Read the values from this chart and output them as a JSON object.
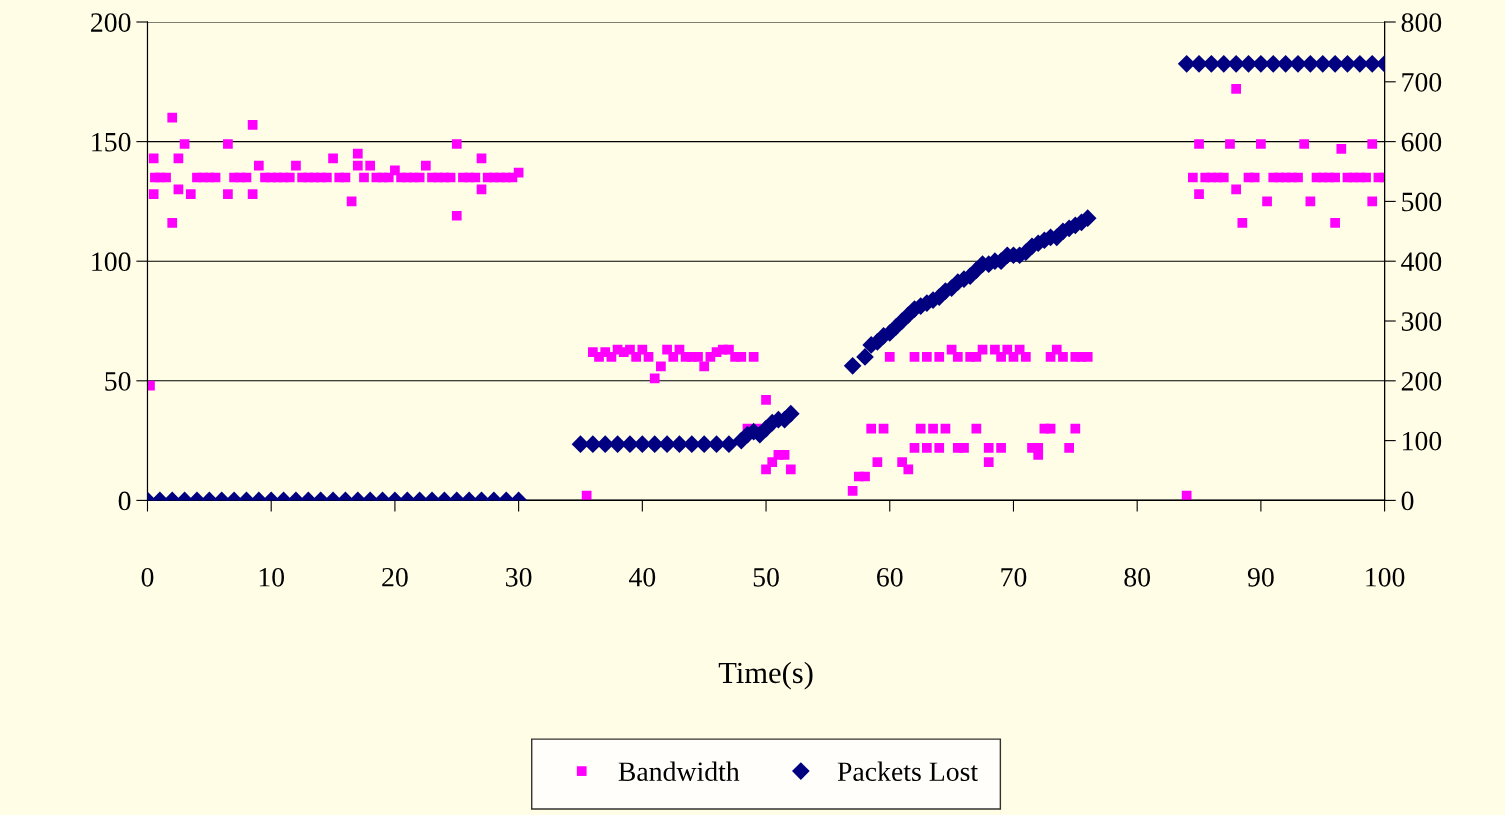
{
  "chart_data": {
    "type": "scatter",
    "xlabel": "Time(s)",
    "xlim": [
      0,
      100
    ],
    "xticks": [
      0,
      10,
      20,
      30,
      40,
      50,
      60,
      70,
      80,
      90,
      100
    ],
    "ylim": [
      0,
      200
    ],
    "yticks": [
      0,
      50,
      100,
      150,
      200
    ],
    "y2lim": [
      0,
      800
    ],
    "y2ticks": [
      0,
      100,
      200,
      300,
      400,
      500,
      600,
      700,
      800
    ],
    "grid": "y",
    "legend": "bottom",
    "series": [
      {
        "name": "Bandwidth",
        "color": "#ff00ff",
        "marker": "square",
        "x": [
          0.2,
          0.5,
          0.5,
          0.6,
          1,
          1.5,
          2,
          2,
          2.5,
          2.5,
          3,
          3.5,
          4,
          4.5,
          5,
          5.5,
          6.5,
          6.5,
          7,
          7.5,
          8,
          8.5,
          8.5,
          9,
          9.5,
          10,
          10.5,
          11,
          11.5,
          12,
          12.5,
          13,
          13.5,
          14,
          14.5,
          15,
          15.5,
          16,
          16.5,
          17,
          17,
          17.5,
          18,
          18.5,
          19,
          19.5,
          20,
          20.5,
          21,
          21.5,
          22,
          22.5,
          23,
          23.5,
          24,
          24.5,
          25,
          25,
          25.5,
          26,
          26.5,
          27,
          27,
          27.5,
          28,
          28.5,
          29,
          29.5,
          30,
          35.5,
          36,
          36.5,
          37,
          37.5,
          38,
          38.5,
          39,
          39.5,
          40,
          40.5,
          41,
          41.5,
          42,
          42.5,
          43,
          43.5,
          44,
          44.5,
          45,
          45.5,
          46,
          46.5,
          47,
          47.5,
          48,
          48.5,
          49,
          49.5,
          50,
          50,
          50.5,
          51,
          51.5,
          52,
          57,
          57.5,
          58,
          58.5,
          59,
          59.5,
          60,
          61,
          61.5,
          62,
          62,
          62.5,
          63,
          63,
          63.5,
          64,
          64,
          64.5,
          65,
          65.5,
          65.5,
          66,
          66.5,
          67,
          67,
          67.5,
          68,
          68,
          68.5,
          69,
          69,
          69.5,
          70,
          70.5,
          71,
          71.5,
          72,
          72,
          72.5,
          73,
          73,
          73.5,
          74,
          74.5,
          75,
          75,
          75.5,
          76,
          84,
          84.5,
          85,
          85,
          85.5,
          86,
          86.5,
          87,
          87.5,
          88,
          88,
          88.5,
          89,
          89.5,
          90,
          90.5,
          91,
          91.5,
          92,
          92.5,
          93,
          93.5,
          94,
          94.5,
          95,
          95.5,
          96,
          96,
          96.5,
          97,
          97.5,
          98,
          98.5,
          99,
          99,
          99.5,
          100
        ],
        "values": [
          48,
          143,
          128,
          135,
          135,
          135,
          160,
          116,
          143,
          130,
          149,
          128,
          135,
          135,
          135,
          135,
          149,
          128,
          135,
          135,
          135,
          157,
          128,
          140,
          135,
          135,
          135,
          135,
          135,
          140,
          135,
          135,
          135,
          135,
          135,
          143,
          135,
          135,
          125,
          145,
          140,
          135,
          140,
          135,
          135,
          135,
          138,
          135,
          135,
          135,
          135,
          140,
          135,
          135,
          135,
          135,
          149,
          119,
          135,
          135,
          135,
          143,
          130,
          135,
          135,
          135,
          135,
          135,
          137,
          2,
          62,
          60,
          62,
          60,
          63,
          62,
          63,
          60,
          63,
          60,
          51,
          56,
          63,
          60,
          63,
          60,
          60,
          60,
          56,
          60,
          62,
          63,
          63,
          60,
          60,
          30,
          60,
          30,
          42,
          13,
          16,
          19,
          19,
          13,
          4,
          10,
          10,
          30,
          16,
          30,
          60,
          16,
          13,
          60,
          22,
          30,
          60,
          22,
          30,
          60,
          22,
          30,
          63,
          22,
          60,
          22,
          60,
          30,
          60,
          63,
          22,
          16,
          63,
          22,
          60,
          63,
          60,
          63,
          60,
          22,
          22,
          19,
          30,
          60,
          30,
          63,
          60,
          22,
          30,
          60,
          60,
          60,
          2,
          135,
          149,
          128,
          135,
          135,
          135,
          135,
          149,
          130,
          172,
          116,
          135,
          135,
          149,
          125,
          135,
          135,
          135,
          135,
          135,
          149,
          125,
          135,
          135,
          135,
          116,
          135,
          147,
          135,
          135,
          135,
          135,
          149,
          125,
          135,
          135
        ]
      },
      {
        "name": "Packets Lost",
        "color": "#000080",
        "marker": "diamond",
        "axis": "y2",
        "x": [
          0,
          1,
          2,
          3,
          4,
          5,
          6,
          7,
          8,
          9,
          10,
          11,
          12,
          13,
          14,
          15,
          16,
          17,
          18,
          19,
          20,
          21,
          22,
          23,
          24,
          25,
          26,
          27,
          28,
          29,
          30,
          35,
          36,
          37,
          38,
          39,
          40,
          41,
          42,
          43,
          44,
          45,
          46,
          47,
          48,
          48.5,
          49,
          49.5,
          50,
          50.5,
          51,
          51.5,
          52,
          57,
          58,
          58.5,
          59,
          59.5,
          60,
          60.5,
          61,
          61.5,
          62,
          62.5,
          63,
          63.5,
          64,
          64.5,
          65,
          65.5,
          66,
          66.5,
          67,
          67.5,
          68,
          68.5,
          69,
          69.5,
          70,
          70.5,
          71,
          71.5,
          72,
          72.5,
          73,
          73.5,
          74,
          74.5,
          75,
          75.5,
          76,
          84,
          85,
          86,
          87,
          88,
          89,
          90,
          91,
          92,
          93,
          94,
          95,
          96,
          97,
          98,
          99,
          100
        ],
        "values": [
          0,
          0,
          0,
          0,
          0,
          0,
          0,
          0,
          0,
          0,
          0,
          0,
          0,
          0,
          0,
          0,
          0,
          0,
          0,
          0,
          0,
          0,
          0,
          0,
          0,
          0,
          0,
          0,
          0,
          0,
          0,
          94,
          94,
          94,
          94,
          94,
          94,
          94,
          94,
          94,
          94,
          94,
          94,
          94,
          100,
          110,
          115,
          110,
          120,
          130,
          135,
          135,
          145,
          225,
          240,
          260,
          265,
          275,
          280,
          290,
          300,
          310,
          320,
          325,
          330,
          335,
          340,
          350,
          355,
          365,
          370,
          375,
          385,
          395,
          395,
          400,
          400,
          410,
          410,
          410,
          415,
          425,
          430,
          435,
          440,
          440,
          450,
          455,
          460,
          465,
          472,
          730,
          730,
          730,
          730,
          730,
          730,
          730,
          730,
          730,
          730,
          730,
          730,
          730,
          730,
          730,
          730,
          730
        ]
      }
    ]
  }
}
